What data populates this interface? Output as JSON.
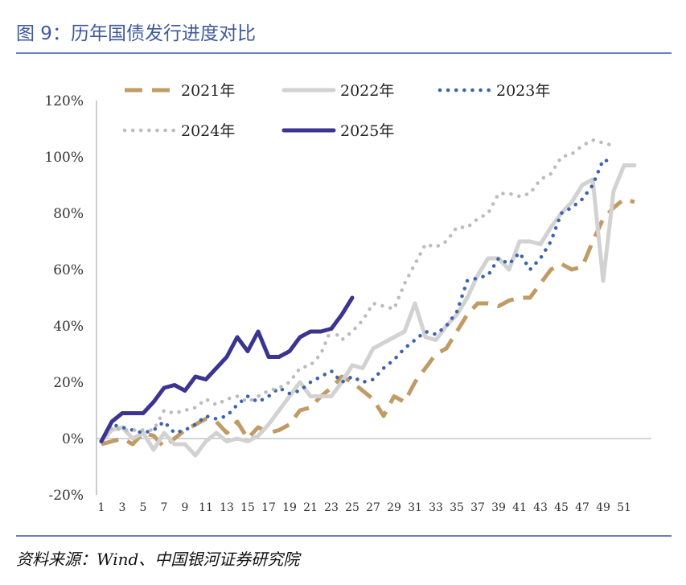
{
  "header": {
    "title": "图 9：历年国债发行进度对比"
  },
  "footer": {
    "source": "资料来源：Wind、中国银河证券研究院"
  },
  "chart_data": {
    "type": "line",
    "title": "历年国债发行进度对比",
    "xlabel": "",
    "ylabel": "",
    "x_ticks": [
      1,
      3,
      5,
      7,
      9,
      11,
      13,
      15,
      17,
      19,
      21,
      23,
      25,
      27,
      29,
      31,
      33,
      35,
      37,
      39,
      41,
      43,
      45,
      47,
      49,
      51
    ],
    "y_ticks": [
      "-20%",
      "0%",
      "20%",
      "40%",
      "60%",
      "80%",
      "100%",
      "120%"
    ],
    "y_tick_values": [
      -20,
      0,
      20,
      40,
      60,
      80,
      100,
      120
    ],
    "xlim": [
      1,
      53
    ],
    "ylim": [
      -20,
      120
    ],
    "grid": false,
    "legend_position": "top",
    "series": [
      {
        "name": "2021年",
        "color": "#c09b66",
        "style": "dashed",
        "values": [
          -2,
          -1,
          0,
          -2,
          2,
          1,
          -3,
          0,
          3,
          5,
          7,
          6,
          2,
          6,
          0,
          4,
          2,
          3,
          5,
          10,
          11,
          15,
          18,
          22,
          20,
          17,
          14,
          8,
          15,
          13,
          20,
          25,
          30,
          32,
          38,
          44,
          48,
          48,
          47,
          49,
          50,
          50,
          55,
          60,
          62,
          60,
          61,
          70,
          78,
          82,
          85,
          84
        ]
      },
      {
        "name": "2022年",
        "color": "#d2d2d2",
        "style": "solid",
        "values": [
          -1,
          3,
          4,
          0,
          2,
          -4,
          2,
          -2,
          -2,
          -6,
          -1,
          2,
          -1,
          0,
          -1,
          1,
          5,
          10,
          15,
          20,
          15,
          15,
          15,
          20,
          26,
          25,
          32,
          34,
          36,
          38,
          48,
          36,
          35,
          40,
          44,
          50,
          58,
          64,
          64,
          60,
          70,
          70,
          69,
          75,
          80,
          84,
          90,
          92,
          56,
          88,
          97,
          97
        ]
      },
      {
        "name": "2023年",
        "color": "#3d64ab",
        "style": "dotted",
        "values": [
          -1,
          5,
          4,
          3,
          2,
          3,
          6,
          2,
          3,
          5,
          8,
          7,
          8,
          12,
          15,
          13,
          15,
          18,
          16,
          17,
          20,
          22,
          24,
          20,
          22,
          20,
          21,
          25,
          28,
          32,
          35,
          38,
          37,
          40,
          45,
          56,
          57,
          58,
          64,
          62,
          66,
          60,
          64,
          70,
          80,
          82,
          85,
          90,
          99,
          98
        ]
      },
      {
        "name": "2024年",
        "color": "#bcbcbc",
        "style": "dotted",
        "values": [
          -1,
          4,
          3,
          3,
          3,
          3,
          10,
          9,
          10,
          11,
          14,
          12,
          14,
          15,
          13,
          15,
          17,
          18,
          20,
          25,
          26,
          30,
          39,
          35,
          38,
          42,
          48,
          47,
          46,
          55,
          62,
          69,
          68,
          70,
          75,
          75,
          78,
          80,
          87,
          87,
          86,
          87,
          92,
          94,
          100,
          101,
          104,
          106,
          105,
          104
        ]
      },
      {
        "name": "2025年",
        "color": "#3b3590",
        "style": "solid",
        "values": [
          -1,
          6,
          9,
          9,
          9,
          13,
          18,
          19,
          17,
          22,
          21,
          25,
          29,
          36,
          31,
          38,
          29,
          29,
          31,
          36,
          38,
          38,
          39,
          44,
          50
        ]
      }
    ]
  }
}
